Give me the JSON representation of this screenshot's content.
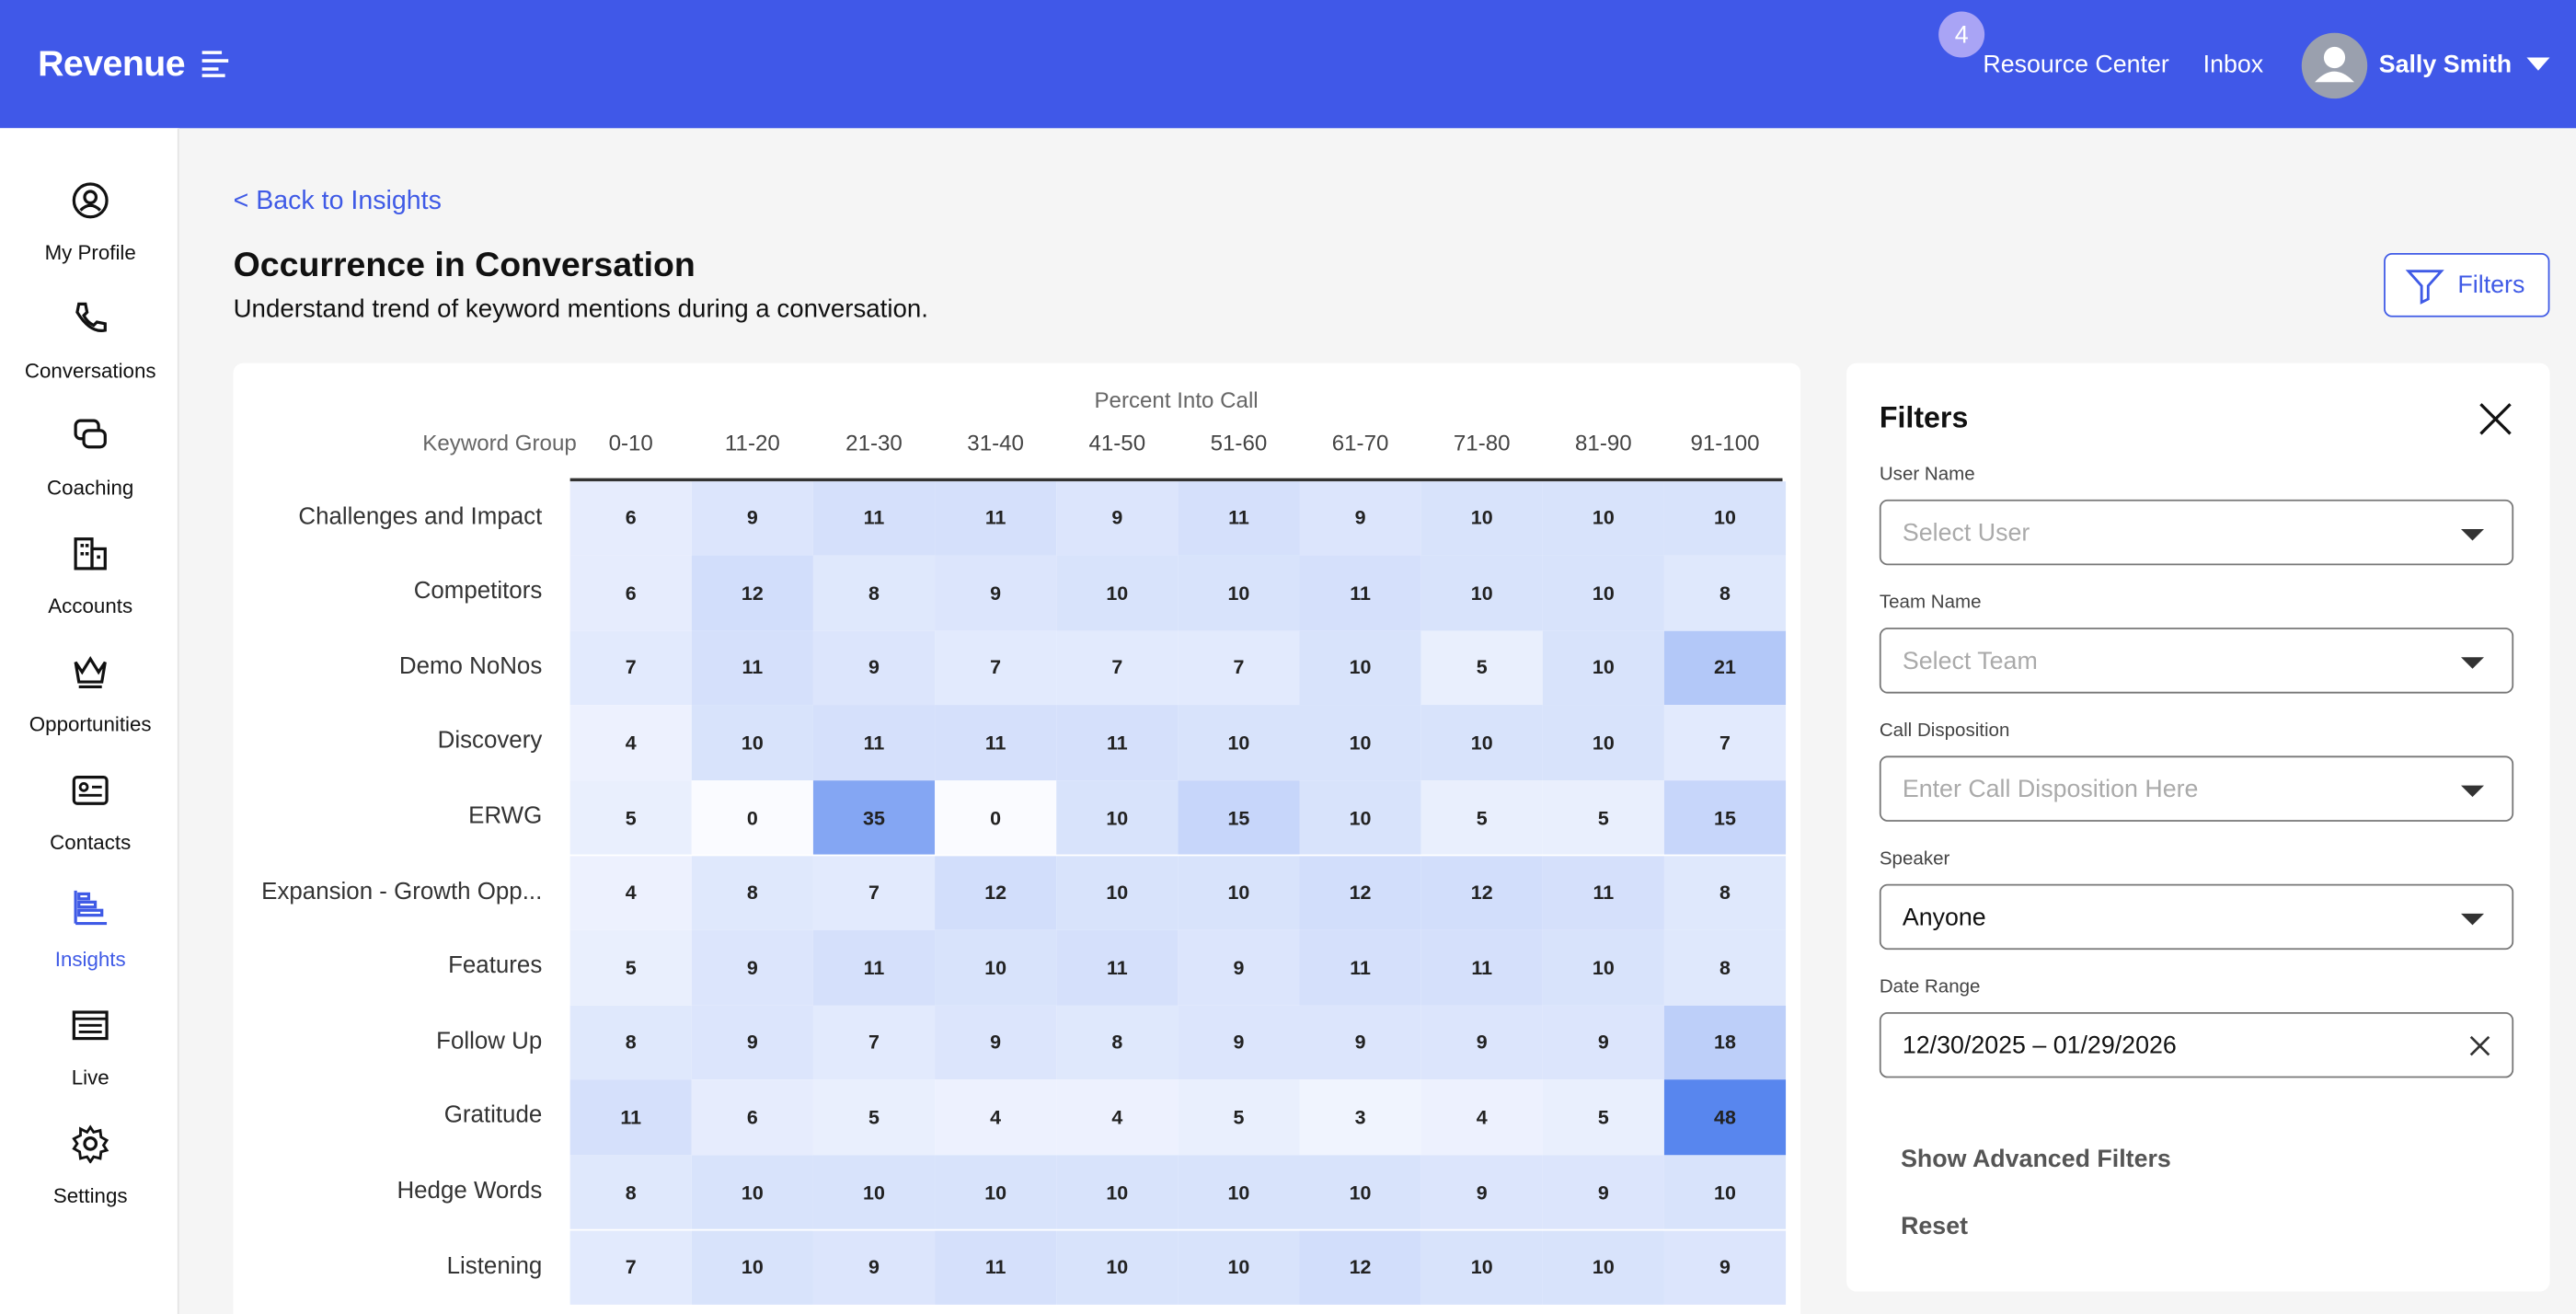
{
  "header": {
    "logo": "Revenue",
    "badge": "4",
    "links": [
      "Resource Center",
      "Inbox"
    ],
    "user": "Sally Smith"
  },
  "sidebar": {
    "items": [
      "My Profile",
      "Conversations",
      "Coaching",
      "Accounts",
      "Opportunities",
      "Contacts",
      "Insights",
      "Live",
      "Settings"
    ],
    "active": "Insights"
  },
  "page": {
    "back": "< Back to Insights",
    "title": "Occurrence in Conversation",
    "subtitle": "Understand trend of keyword mentions during a conversation.",
    "filters_button": "Filters"
  },
  "heatmap": {
    "axis_title": "Percent Into Call",
    "row_header": "Keyword Group",
    "columns": [
      "0-10",
      "11-20",
      "21-30",
      "31-40",
      "41-50",
      "51-60",
      "61-70",
      "71-80",
      "81-90",
      "91-100"
    ],
    "rows": [
      {
        "label": "Challenges and Impact",
        "values": [
          6,
          9,
          11,
          11,
          9,
          11,
          9,
          10,
          10,
          10
        ]
      },
      {
        "label": "Competitors",
        "values": [
          6,
          12,
          8,
          9,
          10,
          10,
          11,
          10,
          10,
          8
        ]
      },
      {
        "label": "Demo NoNos",
        "values": [
          7,
          11,
          9,
          7,
          7,
          7,
          10,
          5,
          10,
          21
        ]
      },
      {
        "label": "Discovery",
        "values": [
          4,
          10,
          11,
          11,
          11,
          10,
          10,
          10,
          10,
          7
        ]
      },
      {
        "label": "ERWG",
        "values": [
          5,
          0,
          35,
          0,
          10,
          15,
          10,
          5,
          5,
          15
        ]
      },
      {
        "label": "Expansion - Growth Opp...",
        "values": [
          4,
          8,
          7,
          12,
          10,
          10,
          12,
          12,
          11,
          8
        ]
      },
      {
        "label": "Features",
        "values": [
          5,
          9,
          11,
          10,
          11,
          9,
          11,
          11,
          10,
          8
        ]
      },
      {
        "label": "Follow Up",
        "values": [
          8,
          9,
          7,
          9,
          8,
          9,
          9,
          9,
          9,
          18
        ]
      },
      {
        "label": "Gratitude",
        "values": [
          11,
          6,
          5,
          4,
          4,
          5,
          3,
          4,
          5,
          48
        ]
      },
      {
        "label": "Hedge Words",
        "values": [
          8,
          10,
          10,
          10,
          10,
          10,
          10,
          9,
          9,
          10
        ]
      },
      {
        "label": "Listening",
        "values": [
          7,
          10,
          9,
          11,
          10,
          10,
          12,
          10,
          10,
          9
        ]
      }
    ]
  },
  "filters": {
    "title": "Filters",
    "fields": [
      {
        "label": "User Name",
        "placeholder": "Select User"
      },
      {
        "label": "Team Name",
        "placeholder": "Select Team"
      },
      {
        "label": "Call Disposition",
        "placeholder": "Enter Call Disposition Here"
      },
      {
        "label": "Speaker",
        "value": "Anyone"
      },
      {
        "label": "Date Range",
        "value": "12/30/2025 – 01/29/2026"
      }
    ],
    "advanced": "Show Advanced Filters",
    "reset": "Reset"
  }
}
